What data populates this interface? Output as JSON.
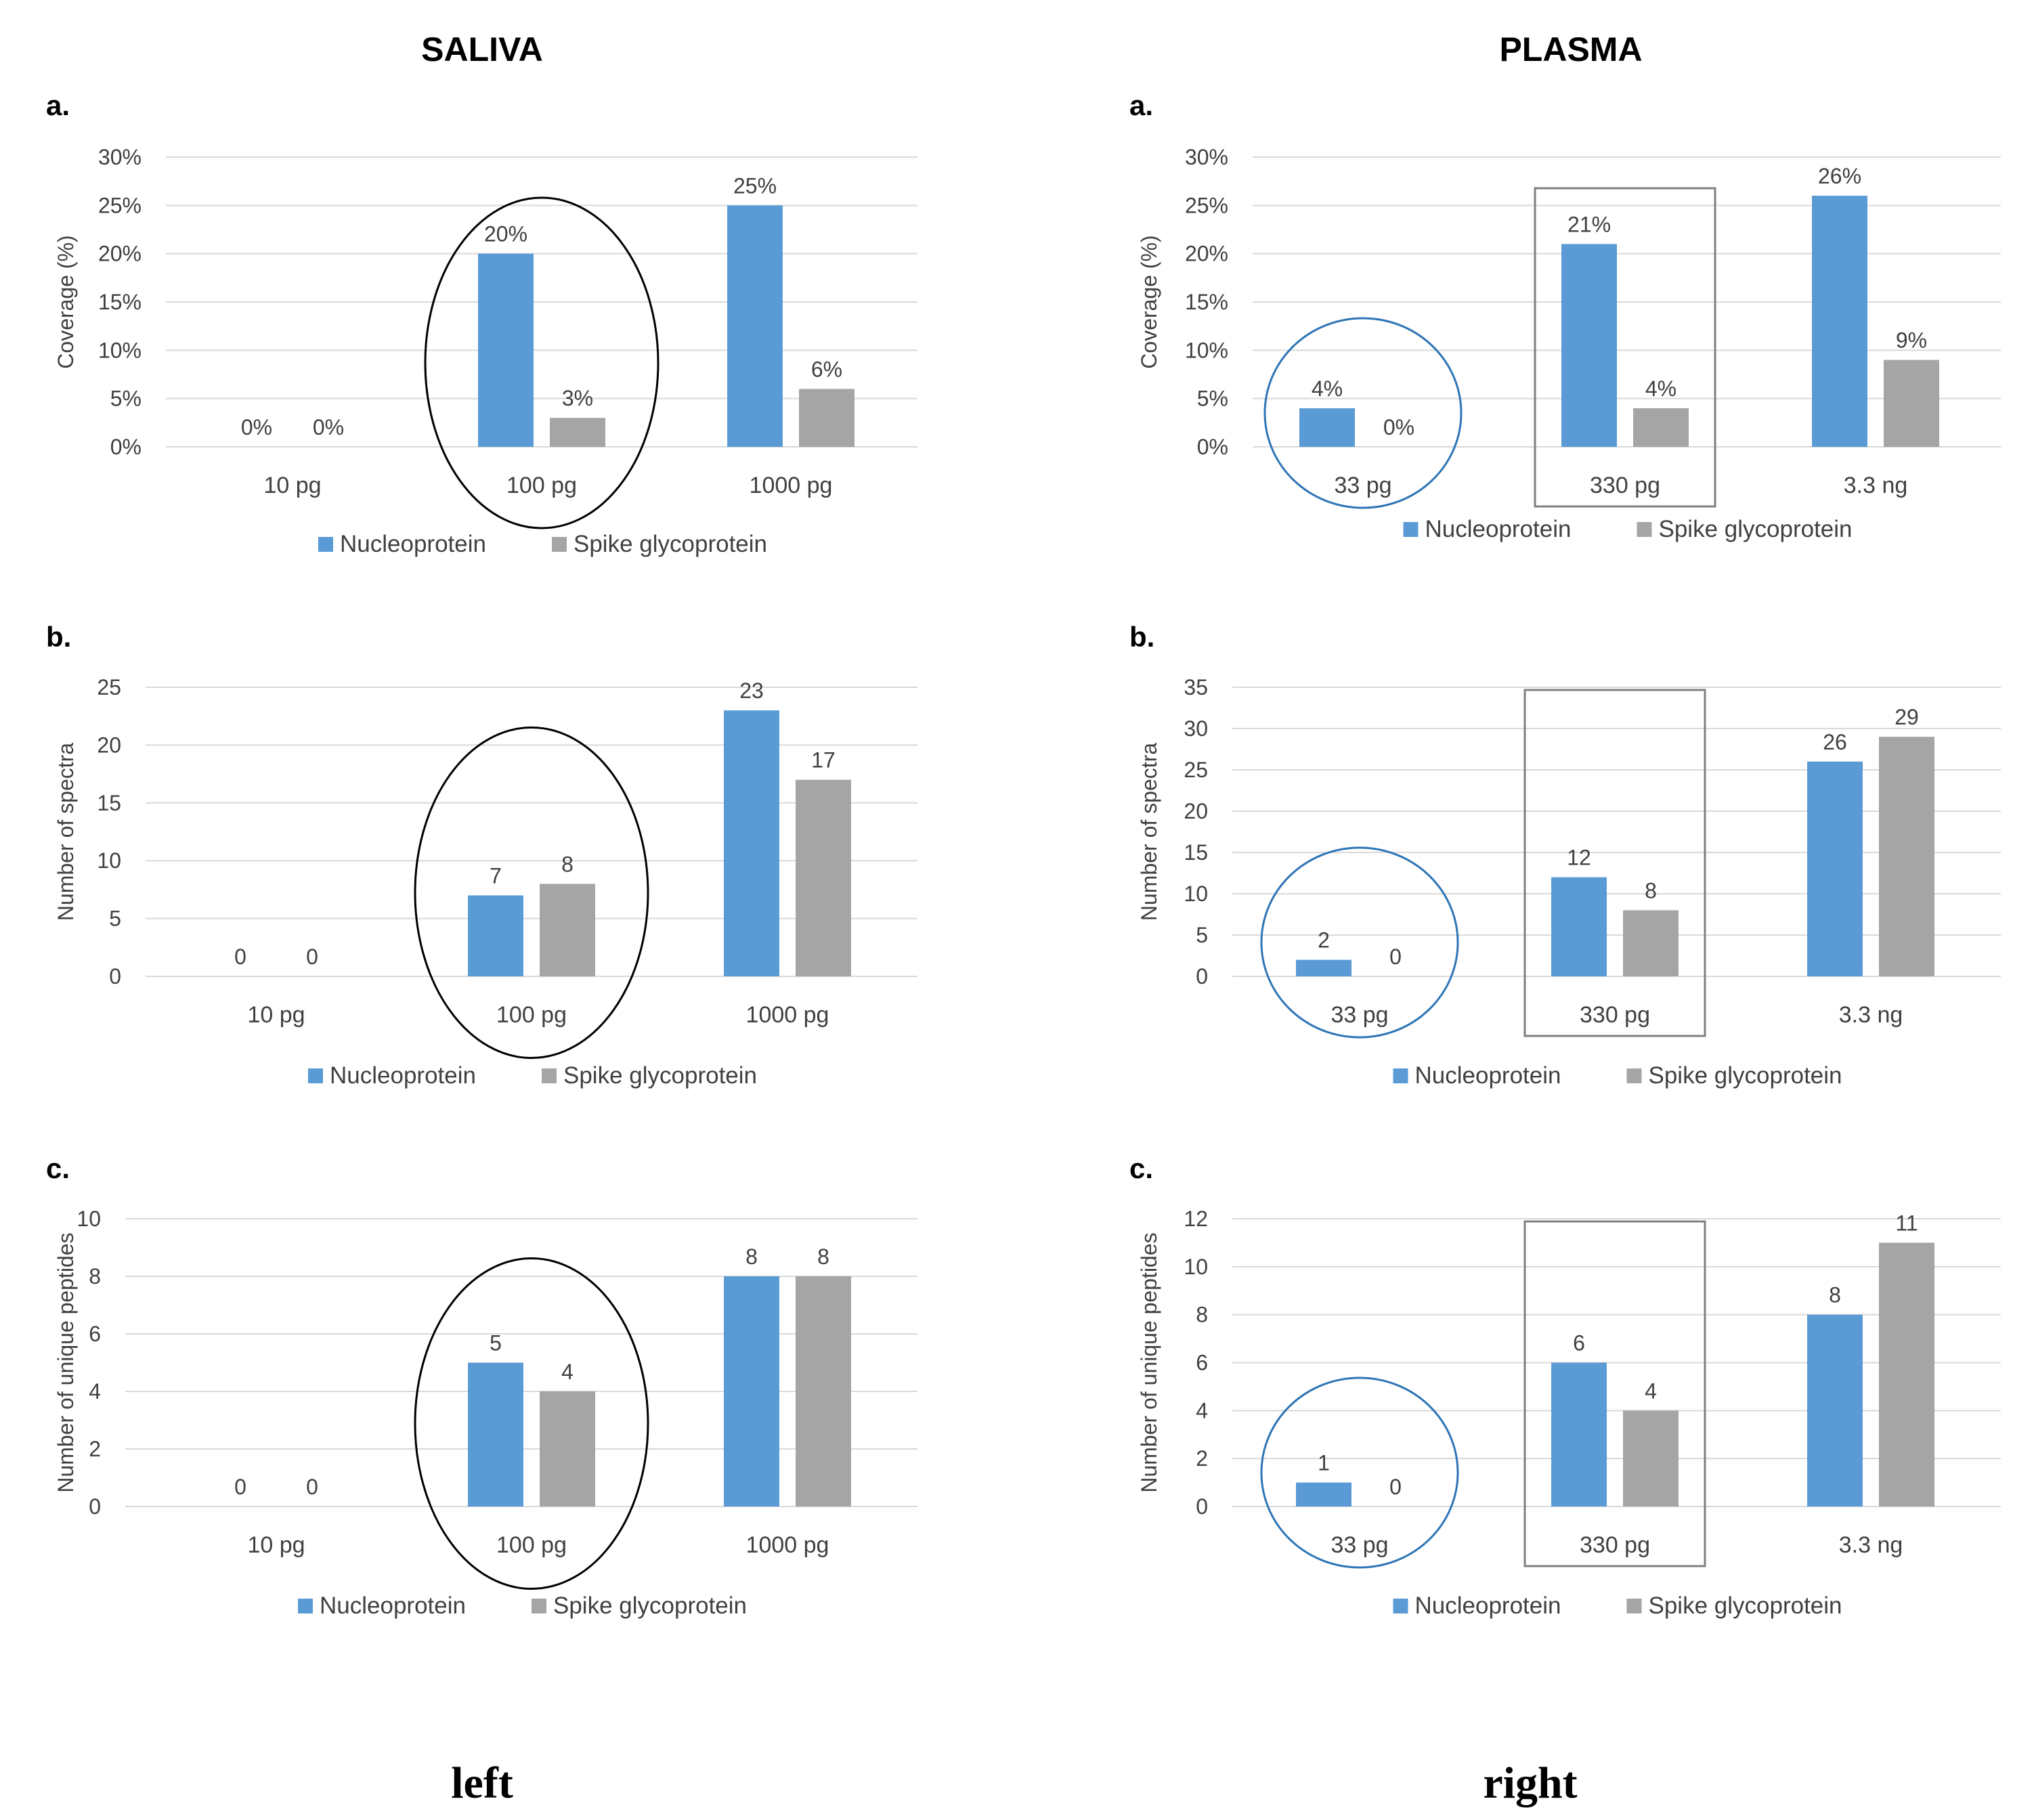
{
  "columns": [
    {
      "title": "SALIVA",
      "caption": "left"
    },
    {
      "title": "PLASMA",
      "caption": "right"
    }
  ],
  "colors": {
    "nucleoprotein": "#5b9bd5",
    "spike": "#a5a5a5",
    "circle_saliva": "#000000",
    "circle_plasma": "#2e75b6",
    "box": "#7f7f7f"
  },
  "chart_data": [
    {
      "type": "bar",
      "column": "SALIVA",
      "panel": "a.",
      "ylabel": "Coverage (%)",
      "ylim": [
        0,
        30
      ],
      "yticks": [
        0,
        5,
        10,
        15,
        20,
        25,
        30
      ],
      "percent": true,
      "categories": [
        "10 pg",
        "100 pg",
        "1000 pg"
      ],
      "series": [
        {
          "name": "Nucleoprotein",
          "values": [
            0,
            20,
            25
          ],
          "labels": [
            "0%",
            "20%",
            "25%"
          ]
        },
        {
          "name": "Spike glycoprotein",
          "values": [
            0,
            3,
            6
          ],
          "labels": [
            "0%",
            "3%",
            "6%"
          ]
        }
      ],
      "highlight_circle": [
        "100 pg"
      ]
    },
    {
      "type": "bar",
      "column": "SALIVA",
      "panel": "b.",
      "ylabel": "Number of spectra",
      "ylim": [
        0,
        25
      ],
      "yticks": [
        0,
        5,
        10,
        15,
        20,
        25
      ],
      "percent": false,
      "categories": [
        "10 pg",
        "100 pg",
        "1000 pg"
      ],
      "series": [
        {
          "name": "Nucleoprotein",
          "values": [
            0,
            7,
            23
          ],
          "labels": [
            "0",
            "7",
            "23"
          ]
        },
        {
          "name": "Spike glycoprotein",
          "values": [
            0,
            8,
            17
          ],
          "labels": [
            "0",
            "8",
            "17"
          ]
        }
      ],
      "highlight_circle": [
        "100 pg"
      ]
    },
    {
      "type": "bar",
      "column": "SALIVA",
      "panel": "c.",
      "ylabel": "Number of unique peptides",
      "ylim": [
        0,
        10
      ],
      "yticks": [
        0,
        2,
        4,
        6,
        8,
        10
      ],
      "percent": false,
      "categories": [
        "10 pg",
        "100 pg",
        "1000 pg"
      ],
      "series": [
        {
          "name": "Nucleoprotein",
          "values": [
            0,
            5,
            8
          ],
          "labels": [
            "0",
            "5",
            "8"
          ]
        },
        {
          "name": "Spike glycoprotein",
          "values": [
            0,
            4,
            8
          ],
          "labels": [
            "0",
            "4",
            "8"
          ]
        }
      ],
      "highlight_circle": [
        "100 pg"
      ]
    },
    {
      "type": "bar",
      "column": "PLASMA",
      "panel": "a.",
      "ylabel": "Coverage (%)",
      "ylim": [
        0,
        30
      ],
      "yticks": [
        0,
        5,
        10,
        15,
        20,
        25,
        30
      ],
      "percent": true,
      "categories": [
        "33 pg",
        "330 pg",
        "3.3 ng"
      ],
      "series": [
        {
          "name": "Nucleoprotein",
          "values": [
            4,
            21,
            26
          ],
          "labels": [
            "4%",
            "21%",
            "26%"
          ]
        },
        {
          "name": "Spike glycoprotein",
          "values": [
            0,
            4,
            9
          ],
          "labels": [
            "0%",
            "4%",
            "9%"
          ]
        }
      ],
      "highlight_circle": [
        "33 pg"
      ],
      "highlight_box": [
        "330 pg"
      ]
    },
    {
      "type": "bar",
      "column": "PLASMA",
      "panel": "b.",
      "ylabel": "Number of spectra",
      "ylim": [
        0,
        35
      ],
      "yticks": [
        0,
        5,
        10,
        15,
        20,
        25,
        30,
        35
      ],
      "percent": false,
      "categories": [
        "33 pg",
        "330 pg",
        "3.3 ng"
      ],
      "series": [
        {
          "name": "Nucleoprotein",
          "values": [
            2,
            12,
            26
          ],
          "labels": [
            "2",
            "12",
            "26"
          ]
        },
        {
          "name": "Spike glycoprotein",
          "values": [
            0,
            8,
            29
          ],
          "labels": [
            "0",
            "8",
            "29"
          ]
        }
      ],
      "highlight_circle": [
        "33 pg"
      ],
      "highlight_box": [
        "330 pg"
      ]
    },
    {
      "type": "bar",
      "column": "PLASMA",
      "panel": "c.",
      "ylabel": "Number of unique peptides",
      "ylim": [
        0,
        12
      ],
      "yticks": [
        0,
        2,
        4,
        6,
        8,
        10,
        12
      ],
      "percent": false,
      "categories": [
        "33 pg",
        "330 pg",
        "3.3 ng"
      ],
      "series": [
        {
          "name": "Nucleoprotein",
          "values": [
            1,
            6,
            8
          ],
          "labels": [
            "1",
            "6",
            "8"
          ]
        },
        {
          "name": "Spike glycoprotein",
          "values": [
            0,
            4,
            11
          ],
          "labels": [
            "0",
            "4",
            "11"
          ]
        }
      ],
      "highlight_circle": [
        "33 pg"
      ],
      "highlight_box": [
        "330 pg"
      ]
    }
  ]
}
